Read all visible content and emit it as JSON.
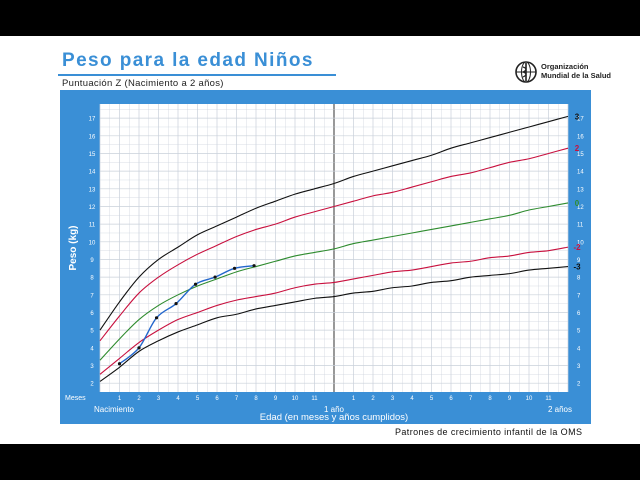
{
  "header": {
    "title": "Peso para la edad Niños",
    "subtitle": "Puntuación Z (Nacimiento a 2 años)",
    "org_line1": "Organización",
    "org_line2": "Mundial de la Salud"
  },
  "footer": {
    "text": "Patrones de crecimiento infantil de la OMS"
  },
  "colors": {
    "frame": "#3a8fd6",
    "z3": "#111111",
    "z2": "#c8103e",
    "z0": "#2e8b2e",
    "child": "#2266cc",
    "grid": "#c9d0da"
  },
  "chart_data": {
    "type": "line",
    "ylabel": "Peso (kg)",
    "xlabel": "Edad (en meses y años cumplidos)",
    "x_unit_label": "Meses",
    "x_range_months": [
      0,
      24
    ],
    "ylim": [
      1.5,
      17.8
    ],
    "y_ticks": [
      2,
      3,
      4,
      5,
      6,
      7,
      8,
      9,
      10,
      11,
      12,
      13,
      14,
      15,
      16,
      17
    ],
    "x_ticks": [
      {
        "month": 1,
        "label": "1"
      },
      {
        "month": 2,
        "label": "2"
      },
      {
        "month": 3,
        "label": "3"
      },
      {
        "month": 4,
        "label": "4"
      },
      {
        "month": 5,
        "label": "5"
      },
      {
        "month": 6,
        "label": "6"
      },
      {
        "month": 7,
        "label": "7"
      },
      {
        "month": 8,
        "label": "8"
      },
      {
        "month": 9,
        "label": "9"
      },
      {
        "month": 10,
        "label": "10"
      },
      {
        "month": 11,
        "label": "11"
      },
      {
        "month": 13,
        "label": "1"
      },
      {
        "month": 14,
        "label": "2"
      },
      {
        "month": 15,
        "label": "3"
      },
      {
        "month": 16,
        "label": "4"
      },
      {
        "month": 17,
        "label": "5"
      },
      {
        "month": 18,
        "label": "6"
      },
      {
        "month": 19,
        "label": "7"
      },
      {
        "month": 20,
        "label": "8"
      },
      {
        "month": 21,
        "label": "9"
      },
      {
        "month": 22,
        "label": "10"
      },
      {
        "month": 23,
        "label": "11"
      }
    ],
    "age_labels": [
      {
        "month": 0,
        "label": "Nacimiento"
      },
      {
        "month": 12,
        "label": "1 año"
      },
      {
        "month": 24,
        "label": "2 años"
      }
    ],
    "x": [
      0,
      1,
      2,
      3,
      4,
      5,
      6,
      7,
      8,
      9,
      10,
      11,
      12,
      13,
      14,
      15,
      16,
      17,
      18,
      19,
      20,
      21,
      22,
      23,
      24
    ],
    "series": [
      {
        "name": "3",
        "color": "#111111",
        "values": [
          5.0,
          6.6,
          8.0,
          9.0,
          9.7,
          10.4,
          10.9,
          11.4,
          11.9,
          12.3,
          12.7,
          13.0,
          13.3,
          13.7,
          14.0,
          14.3,
          14.6,
          14.9,
          15.3,
          15.6,
          15.9,
          16.2,
          16.5,
          16.8,
          17.1
        ]
      },
      {
        "name": "2",
        "color": "#c8103e",
        "values": [
          4.4,
          5.8,
          7.1,
          8.0,
          8.7,
          9.3,
          9.8,
          10.3,
          10.7,
          11.0,
          11.4,
          11.7,
          12.0,
          12.3,
          12.6,
          12.8,
          13.1,
          13.4,
          13.7,
          13.9,
          14.2,
          14.5,
          14.7,
          15.0,
          15.3
        ]
      },
      {
        "name": "0",
        "color": "#2e8b2e",
        "values": [
          3.3,
          4.5,
          5.6,
          6.4,
          7.0,
          7.5,
          7.9,
          8.3,
          8.6,
          8.9,
          9.2,
          9.4,
          9.6,
          9.9,
          10.1,
          10.3,
          10.5,
          10.7,
          10.9,
          11.1,
          11.3,
          11.5,
          11.8,
          12.0,
          12.2
        ]
      },
      {
        "name": "-2",
        "color": "#c8103e",
        "values": [
          2.5,
          3.4,
          4.3,
          5.0,
          5.6,
          6.0,
          6.4,
          6.7,
          6.9,
          7.1,
          7.4,
          7.6,
          7.7,
          7.9,
          8.1,
          8.3,
          8.4,
          8.6,
          8.8,
          8.9,
          9.1,
          9.2,
          9.4,
          9.5,
          9.7
        ]
      },
      {
        "name": "-3",
        "color": "#111111",
        "values": [
          2.1,
          2.9,
          3.8,
          4.4,
          4.9,
          5.3,
          5.7,
          5.9,
          6.2,
          6.4,
          6.6,
          6.8,
          6.9,
          7.1,
          7.2,
          7.4,
          7.5,
          7.7,
          7.8,
          8.0,
          8.1,
          8.2,
          8.4,
          8.5,
          8.6
        ]
      }
    ],
    "child": {
      "color": "#2266cc",
      "points": [
        {
          "x": 1.0,
          "y": 3.1
        },
        {
          "x": 2.0,
          "y": 4.0
        },
        {
          "x": 2.9,
          "y": 5.7
        },
        {
          "x": 3.9,
          "y": 6.5
        },
        {
          "x": 4.9,
          "y": 7.6
        },
        {
          "x": 5.9,
          "y": 8.0
        },
        {
          "x": 6.9,
          "y": 8.5
        },
        {
          "x": 7.9,
          "y": 8.65
        }
      ]
    }
  }
}
